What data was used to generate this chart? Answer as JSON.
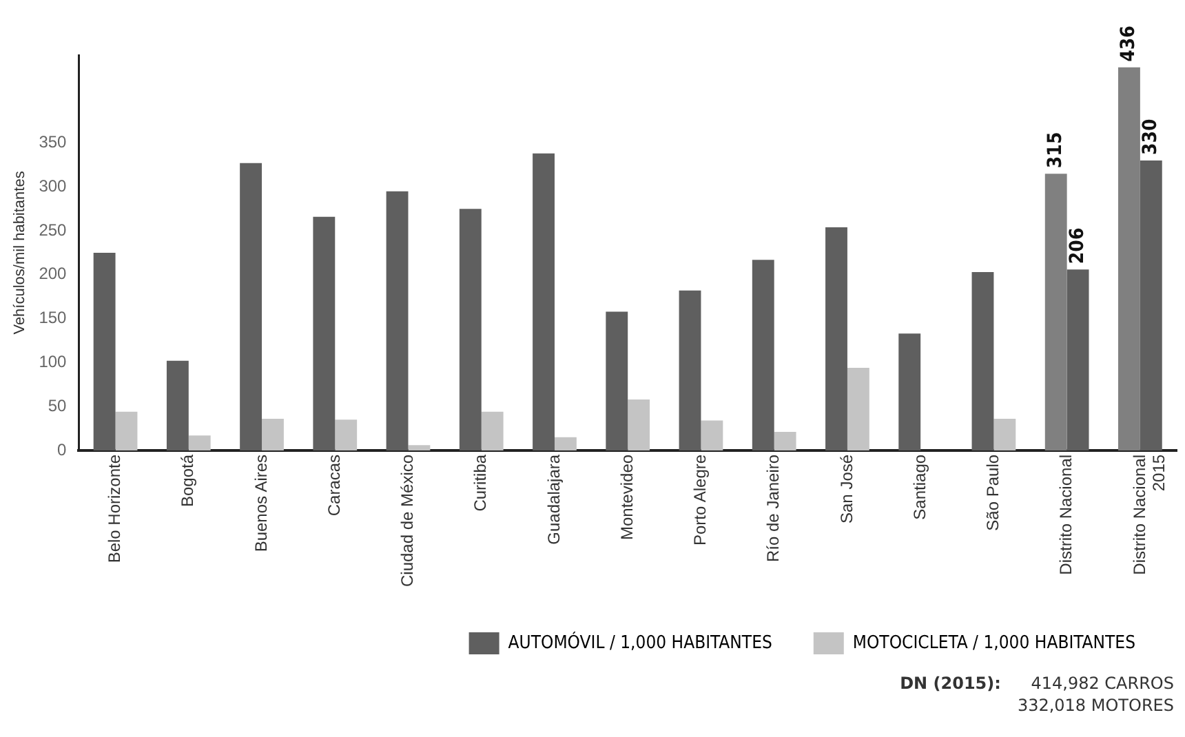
{
  "chart_data": {
    "type": "bar",
    "ylabel": "Vehículos/mil habitantes",
    "categories": [
      "Belo Horizonte",
      "Bogotá",
      "Buenos Aires",
      "Caracas",
      "Ciudad de México",
      "Curitiba",
      "Guadalajara",
      "Montevideo",
      "Porto Alegre",
      "Río de Janeiro",
      "San José",
      "Santiago",
      "São Paulo",
      "Distrito Nacional",
      "Distrito Nacional\n2015"
    ],
    "series": [
      {
        "name": "AUTOMÓVIL / 1,000 HABITANTES",
        "color": "#5f5f5f",
        "colors": [
          "#5f5f5f",
          "#5f5f5f",
          "#5f5f5f",
          "#5f5f5f",
          "#5f5f5f",
          "#5f5f5f",
          "#5f5f5f",
          "#5f5f5f",
          "#5f5f5f",
          "#5f5f5f",
          "#5f5f5f",
          "#5f5f5f",
          "#5f5f5f",
          "#808080",
          "#808080"
        ],
        "values": [
          225,
          102,
          327,
          266,
          295,
          275,
          338,
          158,
          182,
          217,
          254,
          133,
          203,
          315,
          436
        ],
        "value_labels": [
          null,
          null,
          null,
          null,
          null,
          null,
          null,
          null,
          null,
          null,
          null,
          null,
          null,
          "315",
          "436"
        ]
      },
      {
        "name": "MOTOCICLETA / 1,000 HABITANTES",
        "color": "#c4c4c4",
        "colors": [
          "#c4c4c4",
          "#c4c4c4",
          "#c4c4c4",
          "#c4c4c4",
          "#c4c4c4",
          "#c4c4c4",
          "#c4c4c4",
          "#c4c4c4",
          "#c4c4c4",
          "#c4c4c4",
          "#c4c4c4",
          "#c4c4c4",
          "#c4c4c4",
          "#5f5f5f",
          "#5f5f5f"
        ],
        "values": [
          44,
          17,
          36,
          35,
          6,
          44,
          15,
          58,
          34,
          21,
          94,
          null,
          36,
          206,
          330
        ],
        "value_labels": [
          null,
          null,
          null,
          null,
          null,
          null,
          null,
          null,
          null,
          null,
          null,
          null,
          null,
          "206",
          "330"
        ]
      }
    ],
    "ylim": [
      0,
      450
    ],
    "yticks": [
      0,
      50,
      100,
      150,
      200,
      250,
      300,
      350
    ],
    "grid": false,
    "legend": "bottom right",
    "annotations": [
      "DN (2015):",
      "414,982 CARROS",
      "332,018 MOTORES"
    ]
  }
}
